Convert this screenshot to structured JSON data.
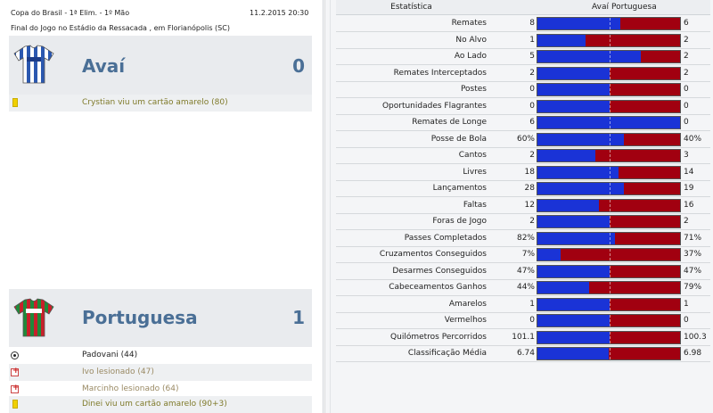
{
  "match": {
    "competition": "Copa do Brasil - 1ª Elim. - 1º Mão",
    "datetime": "11.2.2015 20:30",
    "venue": "Final do Jogo no Estádio da Ressacada , em Florianópolis (SC)"
  },
  "home": {
    "name": "Avaí",
    "score": "0",
    "shirt_colors": [
      "#2b58b0",
      "#ffffff"
    ],
    "events": [
      {
        "icon": "yellow-card-icon",
        "text": "Crystian viu um cartão amarelo (80)"
      }
    ]
  },
  "away": {
    "name": "Portuguesa",
    "score": "1",
    "shirt_colors": [
      "#c8202a",
      "#1f8a3a"
    ],
    "events": [
      {
        "icon": "ball-icon",
        "text": "Padovani (44)"
      },
      {
        "icon": "injury-icon",
        "text": "Ivo lesionado (47)"
      },
      {
        "icon": "injury-icon",
        "text": "Marcinho lesionado (64)"
      },
      {
        "icon": "yellow-card-icon",
        "text": "Dinei viu um cartão amarelo (90+3)"
      }
    ]
  },
  "stats": {
    "header": {
      "label": "Estatística",
      "home": "Avaí",
      "away": "Portuguesa"
    },
    "colors": {
      "home": "#1a33d6",
      "away": "#a10010"
    },
    "rows": [
      {
        "label": "Remates",
        "home": "8",
        "away": "6",
        "home_share": 0.571
      },
      {
        "label": "No Alvo",
        "home": "1",
        "away": "2",
        "home_share": 0.333
      },
      {
        "label": "Ao Lado",
        "home": "5",
        "away": "2",
        "home_share": 0.714
      },
      {
        "label": "Remates Interceptados",
        "home": "2",
        "away": "2",
        "home_share": 0.5
      },
      {
        "label": "Postes",
        "home": "0",
        "away": "0",
        "home_share": 0.5
      },
      {
        "label": "Oportunidades Flagrantes",
        "home": "0",
        "away": "0",
        "home_share": 0.5
      },
      {
        "label": "Remates de Longe",
        "home": "6",
        "away": "0",
        "home_share": 1.0
      },
      {
        "label": "Posse de Bola",
        "home": "60%",
        "away": "40%",
        "home_share": 0.6
      },
      {
        "label": "Cantos",
        "home": "2",
        "away": "3",
        "home_share": 0.4
      },
      {
        "label": "Livres",
        "home": "18",
        "away": "14",
        "home_share": 0.5625
      },
      {
        "label": "Lançamentos",
        "home": "28",
        "away": "19",
        "home_share": 0.596
      },
      {
        "label": "Faltas",
        "home": "12",
        "away": "16",
        "home_share": 0.4286
      },
      {
        "label": "Foras de Jogo",
        "home": "2",
        "away": "2",
        "home_share": 0.5
      },
      {
        "label": "Passes Completados",
        "home": "82%",
        "away": "71%",
        "home_share": 0.536
      },
      {
        "label": "Cruzamentos Conseguidos",
        "home": "7%",
        "away": "37%",
        "home_share": 0.159
      },
      {
        "label": "Desarmes Conseguidos",
        "home": "47%",
        "away": "47%",
        "home_share": 0.5
      },
      {
        "label": "Cabeceamentos Ganhos",
        "home": "44%",
        "away": "79%",
        "home_share": 0.358
      },
      {
        "label": "Amarelos",
        "home": "1",
        "away": "1",
        "home_share": 0.5
      },
      {
        "label": "Vermelhos",
        "home": "0",
        "away": "0",
        "home_share": 0.5
      },
      {
        "label": "Quilómetros Percorridos",
        "home": "101.1",
        "away": "100.3",
        "home_share": 0.502
      },
      {
        "label": "Classificação Média",
        "home": "6.74",
        "away": "6.98",
        "home_share": 0.491
      }
    ]
  }
}
